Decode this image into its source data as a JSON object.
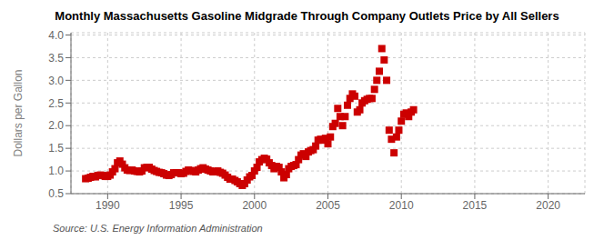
{
  "chart_data": {
    "type": "scatter",
    "title": "Monthly Massachusetts Gasoline Midgrade Through Company Outlets Price by All Sellers",
    "ylabel": "Dollars per Gallon",
    "annotations": [
      "Source: U.S. Energy Information Administration"
    ],
    "color": "#CC0000",
    "marker": "square",
    "grid": true,
    "xlim": [
      1987.5,
      2022.5
    ],
    "ylim": [
      0.5,
      4.05
    ],
    "xticks": [
      1990,
      1995,
      2000,
      2005,
      2010,
      2015,
      2020
    ],
    "yticks": [
      0.5,
      {
        "value": 1.0,
        "label": "1.0"
      },
      1.5,
      {
        "value": 2.0,
        "label": "2.0"
      },
      2.5,
      {
        "value": 3.0,
        "label": "3.0"
      },
      3.5,
      {
        "value": 4.0,
        "label": "4.0"
      }
    ],
    "x": [
      1988.5,
      1988.67,
      1988.83,
      1989.0,
      1989.17,
      1989.33,
      1989.5,
      1989.67,
      1989.83,
      1990.0,
      1990.17,
      1990.33,
      1990.5,
      1990.67,
      1990.83,
      1991.0,
      1991.17,
      1991.33,
      1991.5,
      1991.67,
      1991.83,
      1992.0,
      1992.17,
      1992.33,
      1992.5,
      1992.67,
      1992.83,
      1993.0,
      1993.17,
      1993.33,
      1993.5,
      1993.67,
      1993.83,
      1994.0,
      1994.17,
      1994.33,
      1994.5,
      1994.67,
      1994.83,
      1995.0,
      1995.17,
      1995.33,
      1995.5,
      1995.67,
      1995.83,
      1996.0,
      1996.17,
      1996.33,
      1996.5,
      1996.67,
      1996.83,
      1997.0,
      1997.17,
      1997.33,
      1997.5,
      1997.67,
      1997.83,
      1998.0,
      1998.17,
      1998.33,
      1998.5,
      1998.67,
      1998.83,
      1999.0,
      1999.17,
      1999.33,
      1999.5,
      1999.67,
      1999.83,
      2000.0,
      2000.17,
      2000.33,
      2000.5,
      2000.67,
      2000.83,
      2001.0,
      2001.17,
      2001.33,
      2001.5,
      2001.67,
      2001.83,
      2002.0,
      2002.17,
      2002.33,
      2002.5,
      2002.67,
      2002.83,
      2003.0,
      2003.17,
      2003.33,
      2003.5,
      2003.67,
      2003.83,
      2004.0,
      2004.17,
      2004.33,
      2004.5,
      2004.67,
      2004.83,
      2005.0,
      2005.17,
      2005.33,
      2005.5,
      2005.67,
      2005.83,
      2006.0,
      2006.17,
      2006.33,
      2006.5,
      2006.67,
      2006.83,
      2007.0,
      2007.17,
      2007.33,
      2007.5,
      2007.67,
      2007.83,
      2008.0,
      2008.17,
      2008.33,
      2008.5,
      2008.67,
      2008.83,
      2009.0,
      2009.17,
      2009.33,
      2009.5,
      2009.67,
      2009.83,
      2010.0,
      2010.17,
      2010.33,
      2010.5,
      2010.67,
      2010.83
    ],
    "values": [
      0.83,
      0.84,
      0.86,
      0.88,
      0.87,
      0.9,
      0.91,
      0.9,
      0.88,
      0.88,
      0.91,
      0.98,
      1.05,
      1.18,
      1.22,
      1.15,
      1.07,
      1.02,
      1.01,
      1.02,
      1.0,
      0.99,
      0.98,
      1.0,
      1.07,
      1.08,
      1.08,
      1.04,
      1.01,
      0.99,
      0.97,
      0.96,
      0.94,
      0.91,
      0.9,
      0.92,
      0.96,
      0.96,
      0.96,
      0.94,
      0.95,
      0.99,
      1.02,
      1.01,
      0.99,
      0.98,
      1.02,
      1.05,
      1.07,
      1.04,
      1.02,
      1.0,
      0.98,
      0.99,
      1.0,
      0.97,
      0.95,
      0.91,
      0.86,
      0.82,
      0.82,
      0.79,
      0.76,
      0.72,
      0.68,
      0.72,
      0.8,
      0.87,
      0.9,
      1.0,
      1.08,
      1.2,
      1.25,
      1.28,
      1.26,
      1.18,
      1.12,
      1.05,
      1.1,
      1.08,
      0.98,
      0.85,
      0.92,
      1.05,
      1.1,
      1.12,
      1.14,
      1.25,
      1.35,
      1.38,
      1.32,
      1.42,
      1.45,
      1.47,
      1.55,
      1.68,
      1.7,
      1.68,
      1.72,
      1.6,
      1.75,
      1.98,
      2.05,
      2.38,
      2.2,
      2.0,
      2.2,
      2.45,
      2.6,
      2.7,
      2.65,
      2.3,
      2.35,
      2.5,
      2.55,
      2.58,
      2.6,
      2.6,
      2.8,
      3.0,
      3.2,
      3.7,
      3.45,
      3.0,
      1.9,
      1.7,
      1.4,
      1.75,
      1.9,
      2.1,
      2.25,
      2.28,
      2.2,
      2.3,
      2.35
    ]
  }
}
